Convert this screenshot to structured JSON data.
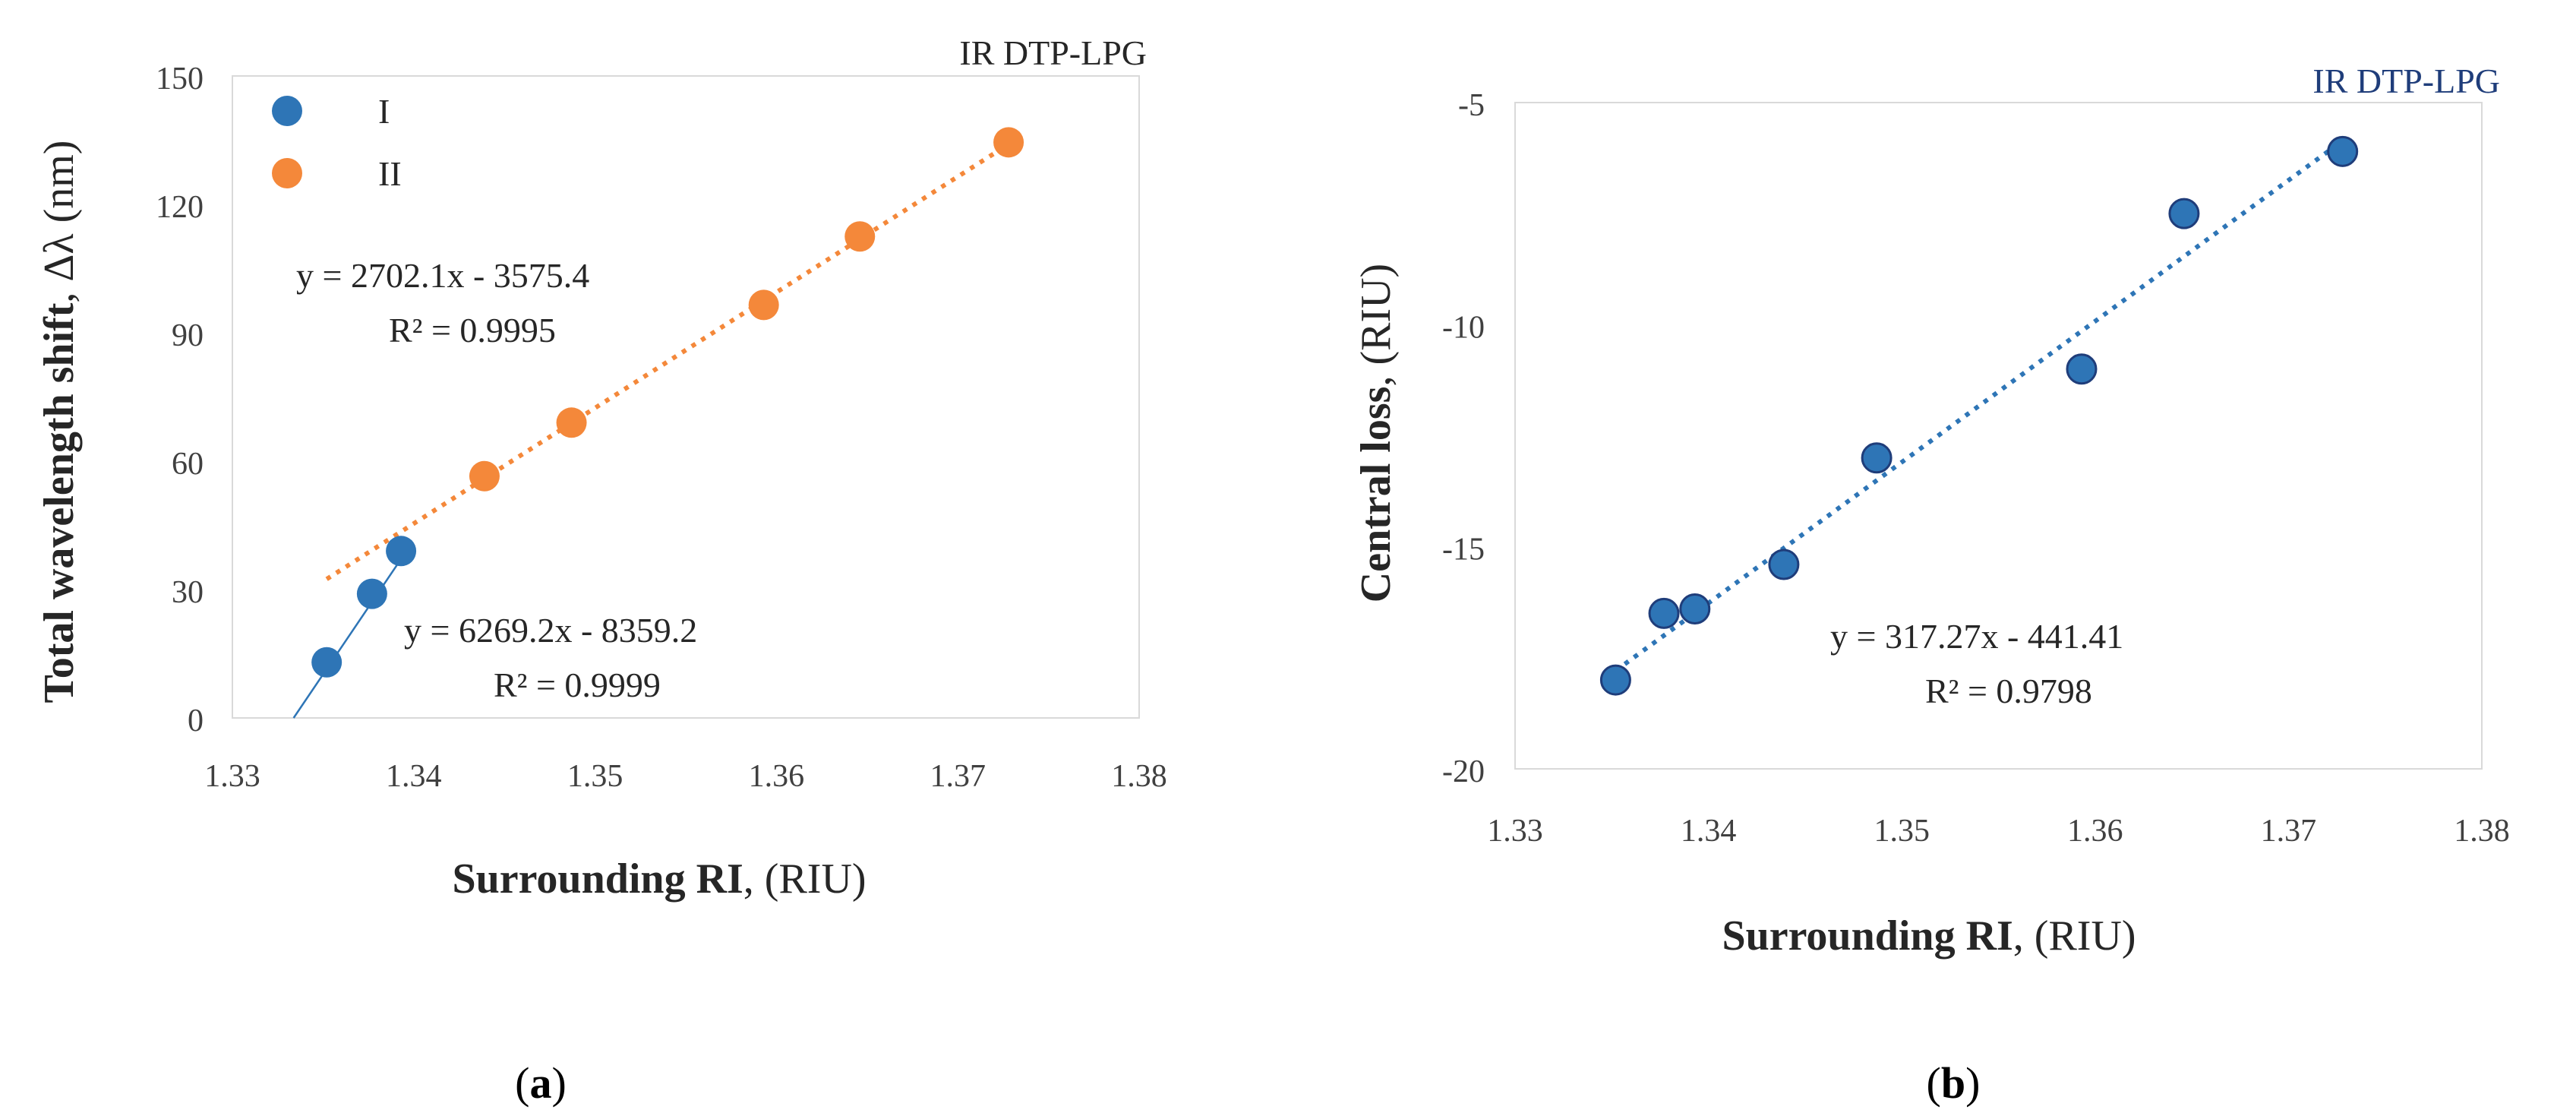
{
  "chart_data": [
    {
      "type": "scatter",
      "panel_label": "a",
      "title": "IR DTP-LPG",
      "title_color": "#262626",
      "xlabel_bold": "Surrounding RI",
      "xlabel_rest": ", (RIU)",
      "ylabel_bold": "Total wavelength shift",
      "ylabel_rest": ", Δλ (nm)",
      "xlim": [
        1.33,
        1.38
      ],
      "ylim": [
        0,
        150
      ],
      "xticks": [
        "1.33",
        "1.34",
        "1.35",
        "1.36",
        "1.37",
        "1.38"
      ],
      "xtick_values": [
        1.33,
        1.34,
        1.35,
        1.36,
        1.37,
        1.38
      ],
      "yticks": [
        "0",
        "30",
        "60",
        "90",
        "120",
        "150"
      ],
      "ytick_values": [
        0,
        30,
        60,
        90,
        120,
        150
      ],
      "series": [
        {
          "name": "I",
          "color": "#2e75b6",
          "x": [
            1.3352,
            1.3377,
            1.3393
          ],
          "y": [
            13,
            29,
            39
          ],
          "fit": {
            "slope": 6269.2,
            "intercept": -8359.2,
            "x_range": [
              1.332,
              1.3393
            ],
            "style": "solid"
          },
          "equation": "y = 6269.2x - 8359.2",
          "r2": "R² = 0.9999"
        },
        {
          "name": "II",
          "color": "#f4883a",
          "x": [
            1.3439,
            1.3487,
            1.3593,
            1.3646,
            1.3728
          ],
          "y": [
            56.5,
            69,
            96.5,
            112.5,
            134.5
          ],
          "fit": {
            "slope": 2702.1,
            "intercept": -3575.4,
            "x_range": [
              1.3352,
              1.3728
            ],
            "style": "dotted"
          },
          "equation": "y = 2702.1x - 3575.4",
          "r2": "R² = 0.9995"
        }
      ]
    },
    {
      "type": "scatter",
      "panel_label": "b",
      "title": "IR DTP-LPG",
      "title_color": "#1f3d7a",
      "xlabel_bold": "Surrounding RI",
      "xlabel_rest": ", (RIU)",
      "ylabel_bold": "Central loss",
      "ylabel_rest": ", (RIU)",
      "xlim": [
        1.33,
        1.38
      ],
      "ylim": [
        -20,
        -5
      ],
      "xticks": [
        "1.33",
        "1.34",
        "1.35",
        "1.36",
        "1.37",
        "1.38"
      ],
      "xtick_values": [
        1.33,
        1.34,
        1.35,
        1.36,
        1.37,
        1.38
      ],
      "yticks": [
        "-20",
        "-15",
        "-10",
        "-5"
      ],
      "ytick_values": [
        -20,
        -15,
        -10,
        -5
      ],
      "series": [
        {
          "name": "Central loss",
          "color": "#2e75b6",
          "x": [
            1.3352,
            1.3377,
            1.3393,
            1.3439,
            1.3487,
            1.3593,
            1.3646,
            1.3728
          ],
          "y": [
            -18.0,
            -16.5,
            -16.4,
            -15.4,
            -13.0,
            -11.0,
            -7.5,
            -6.1
          ],
          "fit": {
            "slope": 317.27,
            "intercept": -441.41,
            "x_range": [
              1.3352,
              1.3728
            ],
            "style": "dotted"
          },
          "equation": "y = 317.27x - 441.41",
          "r2": "R² = 0.9798"
        }
      ]
    }
  ]
}
